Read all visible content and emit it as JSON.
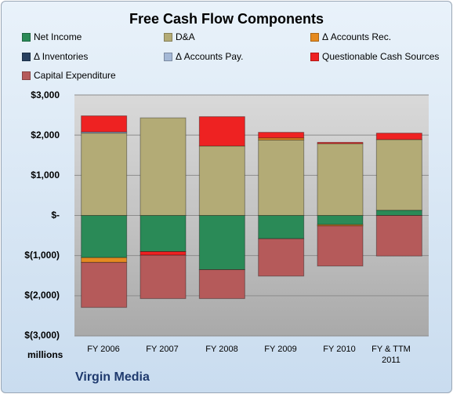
{
  "chart_data": {
    "type": "bar",
    "stacked": true,
    "title": "Free Cash Flow Components",
    "units_label": "millions",
    "company": "Virgin Media",
    "categories": [
      "FY 2006",
      "FY 2007",
      "FY 2008",
      "FY 2009",
      "FY 2010",
      "FY & TTM 2011"
    ],
    "ylim": [
      -3000,
      3000
    ],
    "yticks": [
      3000,
      2000,
      1000,
      0,
      -1000,
      -2000,
      -3000
    ],
    "ytick_labels": [
      "$3,000",
      "$2,000",
      "$1,000",
      "$-",
      "$(1,000)",
      "$(2,000)",
      "$(3,000)"
    ],
    "grid": true,
    "legend_position": "top",
    "series": [
      {
        "name": "Net Income",
        "color": "#2a8a57",
        "values": [
          -1050,
          -900,
          -1350,
          -580,
          -230,
          130
        ]
      },
      {
        "name": "D&A",
        "color": "#b3ab76",
        "values": [
          2050,
          2430,
          1730,
          1880,
          1790,
          1760
        ]
      },
      {
        "name": "Δ Accounts Rec.",
        "color": "#e58a20",
        "values": [
          -120,
          0,
          0,
          50,
          -30,
          0
        ]
      },
      {
        "name": "Δ Inventories",
        "color": "#27405f",
        "values": [
          0,
          0,
          0,
          0,
          0,
          0
        ]
      },
      {
        "name": "Δ Accounts Pay.",
        "color": "#a4b8d6",
        "values": [
          30,
          0,
          0,
          0,
          0,
          0
        ]
      },
      {
        "name": "Questionable Cash Sources",
        "color": "#ee2222",
        "values": [
          400,
          -90,
          730,
          140,
          30,
          160
        ]
      },
      {
        "name": "Capital Expenditure",
        "color": "#b55a5a",
        "values": [
          -1120,
          -1080,
          -720,
          -930,
          -1000,
          -1010
        ]
      }
    ]
  }
}
